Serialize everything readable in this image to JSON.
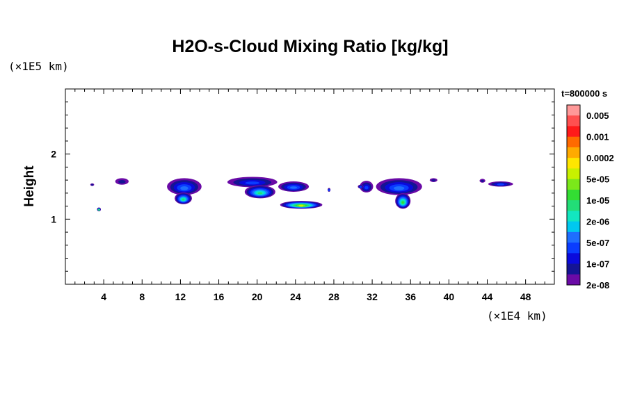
{
  "chart_data": {
    "type": "heatmap",
    "title": "H2O-s-Cloud Mixing Ratio [kg/kg]",
    "ylabel": "Height",
    "yunit": "(×1E5 km)",
    "xunit": "(×1E4 km)",
    "time_label": "t=800000 s",
    "xlim": [
      0,
      51
    ],
    "ylim": [
      0,
      3
    ],
    "x_ticks": [
      "4",
      "8",
      "12",
      "16",
      "20",
      "24",
      "28",
      "32",
      "36",
      "40",
      "44",
      "48"
    ],
    "x_tick_values": [
      4,
      8,
      12,
      16,
      20,
      24,
      28,
      32,
      36,
      40,
      44,
      48
    ],
    "y_ticks": [
      "1",
      "2"
    ],
    "y_tick_values": [
      1,
      2
    ],
    "colorbar": {
      "labels": [
        "0.005",
        "0.001",
        "0.0002",
        "5e-05",
        "1e-05",
        "2e-06",
        "5e-07",
        "1e-07",
        "2e-08"
      ],
      "colors": [
        "#ff9999",
        "#ff5050",
        "#ff1a1a",
        "#ff6a00",
        "#ffaa00",
        "#ffe600",
        "#c8f000",
        "#7be81a",
        "#33dd33",
        "#22dd77",
        "#12e6c0",
        "#00c8f0",
        "#1e6eff",
        "#0a3cff",
        "#0a0adc",
        "#141494",
        "#6a0aa6"
      ]
    },
    "clouds": [
      {
        "x": 2.8,
        "y": 1.53,
        "rx": 0.2,
        "ry": 0.02,
        "level": 16
      },
      {
        "x": 5.9,
        "y": 1.58,
        "rx": 0.7,
        "ry": 0.05,
        "level": 15
      },
      {
        "x": 3.5,
        "y": 1.15,
        "rx": 0.2,
        "ry": 0.03,
        "level": 9
      },
      {
        "x": 12.4,
        "y": 1.5,
        "rx": 1.8,
        "ry": 0.13,
        "level": 12
      },
      {
        "x": 12.3,
        "y": 1.32,
        "rx": 0.9,
        "ry": 0.09,
        "level": 9
      },
      {
        "x": 19.5,
        "y": 1.57,
        "rx": 2.6,
        "ry": 0.08,
        "level": 13
      },
      {
        "x": 20.3,
        "y": 1.42,
        "rx": 1.6,
        "ry": 0.1,
        "level": 9
      },
      {
        "x": 23.8,
        "y": 1.5,
        "rx": 1.6,
        "ry": 0.08,
        "level": 12
      },
      {
        "x": 24.6,
        "y": 1.22,
        "rx": 2.2,
        "ry": 0.06,
        "level": 6
      },
      {
        "x": 31.4,
        "y": 1.5,
        "rx": 0.7,
        "ry": 0.09,
        "level": 13
      },
      {
        "x": 34.8,
        "y": 1.5,
        "rx": 2.4,
        "ry": 0.13,
        "level": 12
      },
      {
        "x": 35.2,
        "y": 1.28,
        "rx": 0.8,
        "ry": 0.12,
        "level": 8
      },
      {
        "x": 38.4,
        "y": 1.6,
        "rx": 0.4,
        "ry": 0.03,
        "level": 15
      },
      {
        "x": 43.5,
        "y": 1.59,
        "rx": 0.3,
        "ry": 0.03,
        "level": 15
      },
      {
        "x": 45.4,
        "y": 1.54,
        "rx": 1.3,
        "ry": 0.04,
        "level": 13
      },
      {
        "x": 30.8,
        "y": 1.5,
        "rx": 0.3,
        "ry": 0.03,
        "level": 13
      },
      {
        "x": 27.5,
        "y": 1.45,
        "rx": 0.15,
        "ry": 0.03,
        "level": 13
      }
    ]
  }
}
